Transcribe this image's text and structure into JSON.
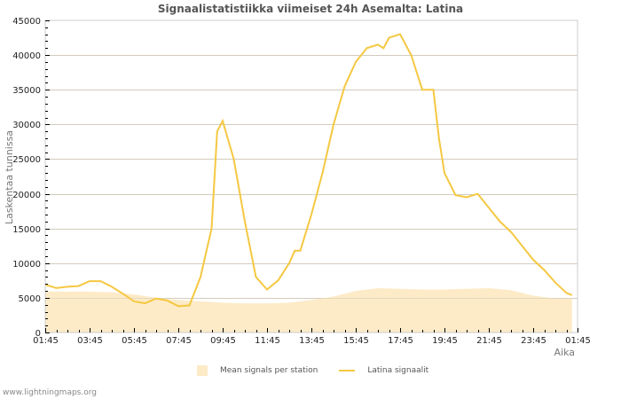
{
  "title": "Signaalistatistiikka viimeiset 24h Asemalta: Latina",
  "footer": "www.lightningmaps.org",
  "legend": {
    "area_label": "Mean signals per station",
    "line_label": "Latina signaalit"
  },
  "colors": {
    "line": "#f5c842",
    "area": "#fdebc8",
    "grid": "#cccccc",
    "axis": "#cccccc"
  },
  "chart_data": {
    "type": "line",
    "title": "Signaalistatistiikka viimeiset 24h Asemalta: Latina",
    "xlabel": "Aika",
    "ylabel": "Laskentaa tunnissa",
    "ylim": [
      0,
      45000
    ],
    "yticks": [
      0,
      5000,
      10000,
      15000,
      20000,
      25000,
      30000,
      35000,
      40000,
      45000
    ],
    "xticks": [
      "01:45",
      "03:45",
      "05:45",
      "07:45",
      "09:45",
      "11:45",
      "13:45",
      "15:45",
      "17:45",
      "19:45",
      "21:45",
      "23:45",
      "01:45"
    ],
    "grid": true,
    "legend_position": "bottom",
    "series": [
      {
        "name": "Latina signaalit",
        "type": "line",
        "x_hours": [
          0,
          0.5,
          1,
          1.5,
          2,
          2.5,
          3,
          3.5,
          4,
          4.5,
          5,
          5.5,
          6,
          6.5,
          7,
          7.5,
          7.75,
          8,
          8.5,
          9,
          9.5,
          10,
          10.5,
          11,
          11.25,
          11.5,
          12,
          12.5,
          13,
          13.5,
          14,
          14.5,
          15,
          15.25,
          15.5,
          16,
          16.5,
          17,
          17.5,
          17.75,
          18,
          18.5,
          19,
          19.5,
          20,
          20.5,
          21,
          21.5,
          22,
          22.5,
          23,
          23.5,
          23.75
        ],
        "values": [
          6900,
          6400,
          6600,
          6700,
          7400,
          7400,
          6600,
          5600,
          4500,
          4200,
          4900,
          4600,
          3800,
          3900,
          8000,
          15000,
          29000,
          30500,
          25000,
          16000,
          8000,
          6200,
          7500,
          10000,
          11800,
          11800,
          17000,
          23000,
          30000,
          35500,
          39000,
          41000,
          41500,
          41000,
          42500,
          43000,
          40000,
          35000,
          35000,
          28000,
          23000,
          19800,
          19500,
          20000,
          18000,
          16000,
          14500,
          12500,
          10500,
          9000,
          7200,
          5700,
          5400
        ]
      },
      {
        "name": "Mean signals per station",
        "type": "area",
        "x_hours": [
          0,
          2,
          3,
          4,
          5,
          6,
          7,
          8,
          9,
          10,
          11,
          12,
          13,
          14,
          15,
          16,
          17,
          18,
          19,
          20,
          21,
          22,
          23,
          23.75
        ],
        "values": [
          5900,
          5900,
          5800,
          5500,
          5000,
          4700,
          4500,
          4300,
          4200,
          4200,
          4300,
          4700,
          5200,
          6000,
          6400,
          6300,
          6200,
          6200,
          6300,
          6400,
          6100,
          5300,
          4900,
          4900
        ]
      }
    ]
  }
}
